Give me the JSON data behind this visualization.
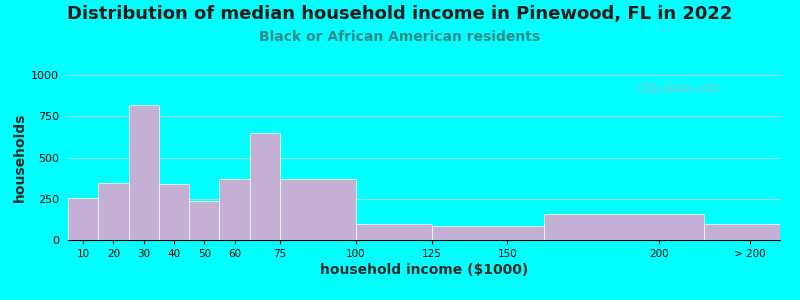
{
  "title": "Distribution of median household income in Pinewood, FL in 2022",
  "subtitle": "Black or African American residents",
  "xlabel": "household income ($1000)",
  "ylabel": "households",
  "bg_outer": "#00FFFF",
  "bar_color": "#C4B0D5",
  "ylim": [
    0,
    1000
  ],
  "yticks": [
    0,
    250,
    500,
    750,
    1000
  ],
  "values": [
    255,
    345,
    820,
    340,
    235,
    370,
    650,
    370,
    100,
    85,
    155,
    100
  ],
  "watermark": "City-Data.com",
  "title_fontsize": 13,
  "subtitle_fontsize": 10,
  "axis_label_fontsize": 10,
  "subtitle_color": "#2E8B8B",
  "title_color": "#1a1a1a"
}
